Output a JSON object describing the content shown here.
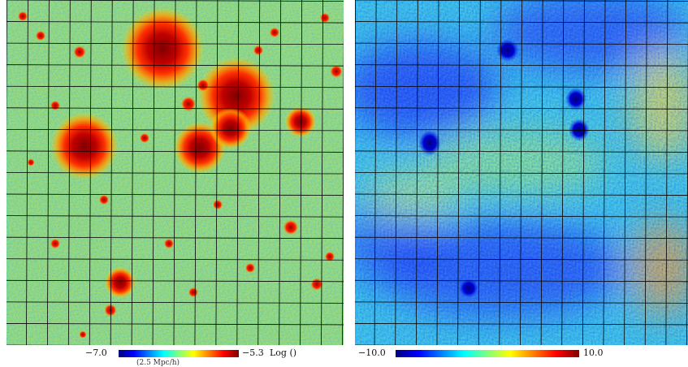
{
  "left_panel": {
    "colorbar": {
      "min_label": "−7.0",
      "max_label": "−5.3",
      "unit_label": "Log ()",
      "sub_label": "(2.5 Mpc/h)",
      "colormap": "jet"
    }
  },
  "right_panel": {
    "colorbar": {
      "min_label": "−10.0",
      "max_label": "10.0",
      "colormap": "jet"
    }
  },
  "colors": {
    "jet": [
      "#00007f",
      "#0000ff",
      "#007fff",
      "#00ffff",
      "#7fff7f",
      "#ffff00",
      "#ff7f00",
      "#ff0000",
      "#7f0000"
    ],
    "grid_line": "#000000",
    "background": "#ffffff"
  }
}
